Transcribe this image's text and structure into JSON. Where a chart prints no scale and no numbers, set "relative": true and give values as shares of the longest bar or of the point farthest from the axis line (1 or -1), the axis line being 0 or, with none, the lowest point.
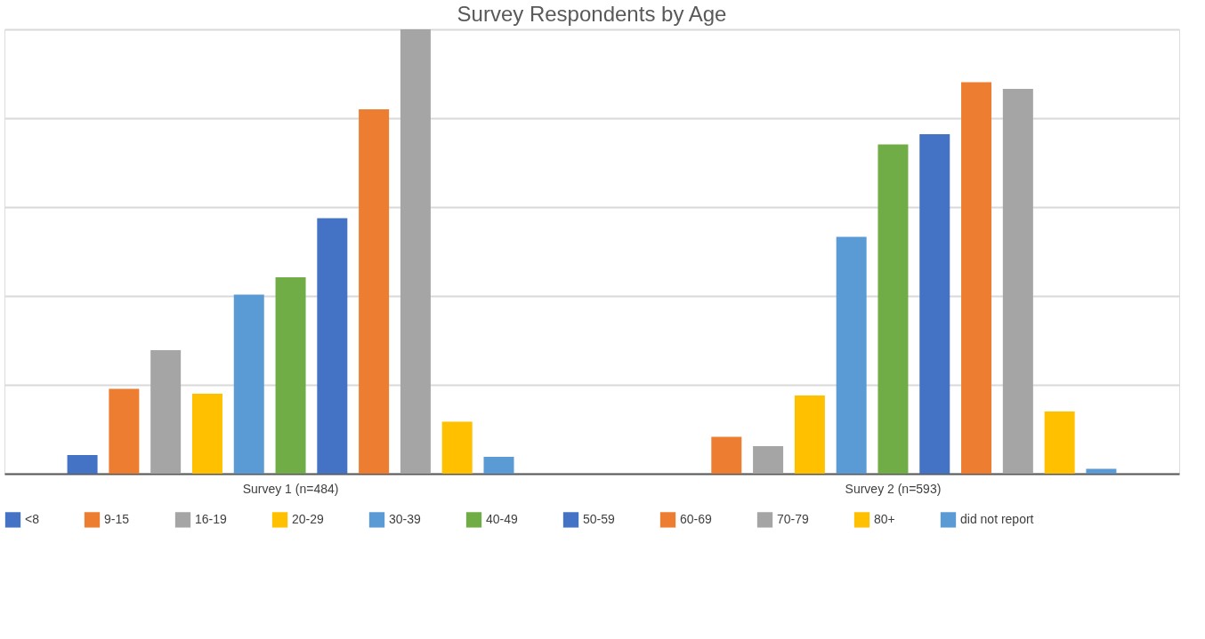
{
  "chart_data": {
    "type": "bar",
    "title": "Survey Respondents by Age",
    "relative": true,
    "grid": "y",
    "legend": "bottom",
    "categories": [
      "Survey 1 (n=484)",
      "Survey 2  (n=593)"
    ],
    "series": [
      {
        "name": "<8",
        "color": "#4472c4",
        "values": [
          0.042,
          null
        ]
      },
      {
        "name": "9-15",
        "color": "#ed7d31",
        "values": [
          0.191,
          0.083
        ]
      },
      {
        "name": "16-19",
        "color": "#a5a5a5",
        "values": [
          0.278,
          0.062
        ]
      },
      {
        "name": "20-29",
        "color": "#ffc000",
        "values": [
          0.18,
          0.176
        ]
      },
      {
        "name": "30-39",
        "color": "#5b9bd5",
        "values": [
          0.403,
          0.533
        ]
      },
      {
        "name": "40-49",
        "color": "#70ad47",
        "values": [
          0.442,
          0.741
        ]
      },
      {
        "name": "50-59",
        "color": "#4472c4",
        "values": [
          0.575,
          0.764
        ]
      },
      {
        "name": "60-69",
        "color": "#ed7d31",
        "values": [
          0.82,
          0.881
        ]
      },
      {
        "name": "70-79",
        "color": "#a5a5a5",
        "values": [
          1.0,
          0.866
        ]
      },
      {
        "name": "80+",
        "color": "#ffc000",
        "values": [
          0.117,
          0.14
        ]
      },
      {
        "name": "did not report",
        "color": "#5b9bd5",
        "values": [
          0.038,
          0.011
        ]
      }
    ]
  }
}
